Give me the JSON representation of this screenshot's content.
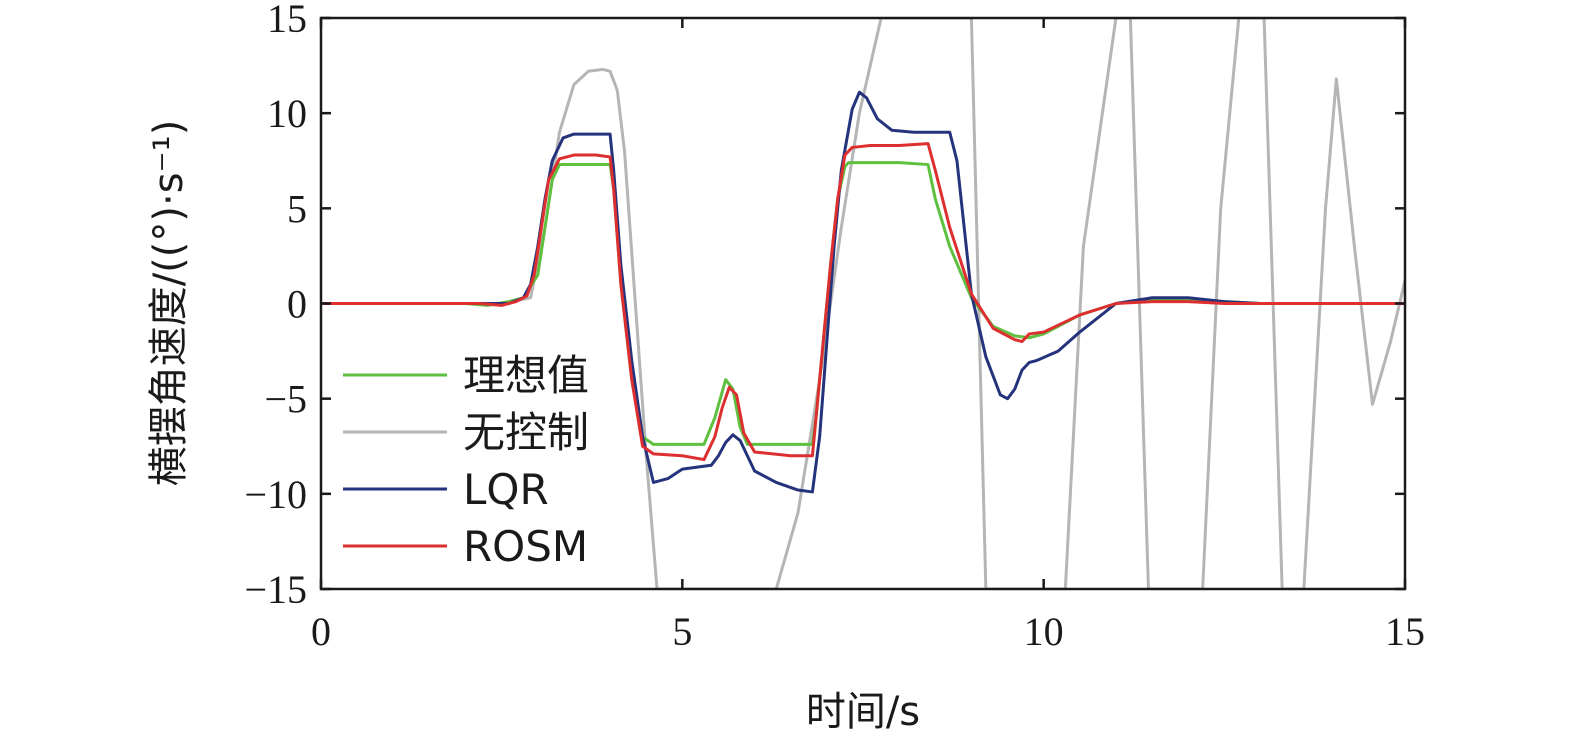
{
  "chart_data": {
    "type": "line",
    "xlabel": "时间/s",
    "ylabel": "横摆角速度/((°)·s⁻¹)",
    "xlim": [
      0,
      15
    ],
    "ylim": [
      -15,
      15
    ],
    "xticks": [
      "0",
      "5",
      "10",
      "15"
    ],
    "yticks": [
      "15",
      "10",
      "5",
      "0",
      "−5",
      "−10",
      "−15"
    ],
    "grid": false,
    "legend_position": "bottom-left",
    "series": [
      {
        "name": "理想值",
        "color": "#5fbf3f",
        "x": [
          0,
          2.0,
          2.3,
          2.6,
          2.8,
          3.0,
          3.1,
          3.2,
          3.3,
          3.5,
          3.8,
          4.0,
          4.05,
          4.15,
          4.3,
          4.45,
          4.6,
          5.3,
          5.45,
          5.6,
          5.7,
          5.8,
          5.9,
          6.5,
          6.8,
          6.85,
          6.95,
          7.05,
          7.15,
          7.25,
          7.3,
          7.5,
          8.0,
          8.4,
          8.5,
          8.7,
          9.0,
          9.3,
          9.6,
          9.8,
          10.0,
          10.5,
          11.0,
          11.5,
          12.0,
          12.5,
          13.0,
          14.0,
          15.0
        ],
        "y": [
          0,
          0,
          -0.1,
          0.1,
          0.3,
          1.5,
          4.0,
          6.5,
          7.3,
          7.3,
          7.3,
          7.3,
          6.0,
          1.0,
          -4.0,
          -7.0,
          -7.4,
          -7.4,
          -6.0,
          -4.0,
          -4.5,
          -6.5,
          -7.4,
          -7.4,
          -7.4,
          -6.0,
          -2.0,
          2.0,
          5.5,
          7.2,
          7.4,
          7.4,
          7.4,
          7.3,
          5.5,
          3.0,
          0.3,
          -1.2,
          -1.7,
          -1.8,
          -1.6,
          -0.6,
          0.0,
          0.2,
          0.2,
          0.1,
          0.0,
          0.0,
          0.0
        ]
      },
      {
        "name": "无控制",
        "color": "#b5b5b5",
        "x": [
          0,
          2.5,
          2.9,
          3.1,
          3.3,
          3.5,
          3.7,
          3.9,
          4.0,
          4.1,
          4.2,
          4.35,
          4.5,
          4.65,
          6.3,
          6.6,
          6.9,
          7.2,
          7.45,
          7.75,
          9.0,
          9.2,
          10.3,
          10.55,
          11.0,
          11.2,
          11.45,
          12.2,
          12.45,
          12.7,
          13.05,
          13.3,
          13.6,
          13.9,
          14.05,
          14.3,
          14.55,
          14.8,
          15.0
        ],
        "y": [
          0,
          0,
          0.3,
          4.0,
          9.0,
          11.5,
          12.2,
          12.3,
          12.2,
          11.2,
          8.0,
          0.0,
          -8.0,
          -15.0,
          -15.0,
          -11.0,
          -4.0,
          4.0,
          10.0,
          15.0,
          15.0,
          -15.0,
          -15.0,
          3.0,
          15.0,
          15.0,
          -15.0,
          -15.0,
          5.0,
          15.0,
          15.0,
          -15.0,
          -15.0,
          5.0,
          11.8,
          3.0,
          -5.3,
          -2.0,
          1.2
        ]
      },
      {
        "name": "LQR",
        "color": "#24337c",
        "x": [
          0,
          2.3,
          2.6,
          2.8,
          2.9,
          3.0,
          3.1,
          3.2,
          3.35,
          3.5,
          3.8,
          4.0,
          4.05,
          4.15,
          4.3,
          4.45,
          4.6,
          4.8,
          5.0,
          5.4,
          5.5,
          5.6,
          5.7,
          5.8,
          5.9,
          6.0,
          6.3,
          6.6,
          6.8,
          6.9,
          7.0,
          7.1,
          7.2,
          7.35,
          7.45,
          7.55,
          7.7,
          7.9,
          8.2,
          8.5,
          8.7,
          8.8,
          8.9,
          9.0,
          9.2,
          9.4,
          9.5,
          9.6,
          9.7,
          9.8,
          9.9,
          10.2,
          10.5,
          11.0,
          11.5,
          12.0,
          12.5,
          13.0,
          14.0,
          15.0
        ],
        "y": [
          0,
          0,
          0,
          0.3,
          1.0,
          3.0,
          5.5,
          7.5,
          8.7,
          8.9,
          8.9,
          8.9,
          7.0,
          2.0,
          -3.0,
          -7.0,
          -9.4,
          -9.2,
          -8.7,
          -8.5,
          -8.0,
          -7.3,
          -6.9,
          -7.2,
          -8.0,
          -8.8,
          -9.4,
          -9.8,
          -9.9,
          -7.0,
          -2.0,
          3.0,
          7.0,
          10.2,
          11.1,
          10.8,
          9.7,
          9.1,
          9.0,
          9.0,
          9.0,
          7.5,
          4.0,
          0.5,
          -2.8,
          -4.8,
          -5.0,
          -4.5,
          -3.5,
          -3.1,
          -3.0,
          -2.5,
          -1.5,
          0.0,
          0.3,
          0.3,
          0.1,
          0.0,
          0.0,
          0.0
        ]
      },
      {
        "name": "ROSM",
        "color": "#dd2f2f",
        "x": [
          0,
          2.2,
          2.5,
          2.7,
          2.85,
          2.95,
          3.05,
          3.15,
          3.3,
          3.5,
          3.8,
          4.0,
          4.05,
          4.15,
          4.3,
          4.45,
          4.6,
          5.0,
          5.3,
          5.45,
          5.55,
          5.65,
          5.75,
          5.85,
          6.0,
          6.5,
          6.8,
          6.85,
          6.95,
          7.05,
          7.15,
          7.25,
          7.35,
          7.6,
          8.0,
          8.4,
          8.5,
          8.7,
          9.0,
          9.3,
          9.6,
          9.7,
          9.8,
          10.0,
          10.5,
          11.0,
          11.5,
          12.0,
          12.5,
          13.0,
          14.0,
          15.0
        ],
        "y": [
          0,
          0,
          -0.1,
          0.1,
          0.4,
          1.5,
          4.0,
          6.5,
          7.6,
          7.8,
          7.8,
          7.7,
          6.0,
          1.0,
          -4.0,
          -7.5,
          -7.9,
          -8.0,
          -8.2,
          -7.0,
          -5.5,
          -4.4,
          -4.8,
          -6.8,
          -7.8,
          -8.0,
          -8.0,
          -6.0,
          -2.0,
          2.0,
          5.5,
          7.8,
          8.2,
          8.3,
          8.3,
          8.4,
          7.0,
          4.0,
          0.5,
          -1.3,
          -1.9,
          -2.0,
          -1.6,
          -1.5,
          -0.6,
          0.0,
          0.1,
          0.1,
          0.0,
          0.0,
          0.0,
          0.0
        ]
      }
    ]
  }
}
